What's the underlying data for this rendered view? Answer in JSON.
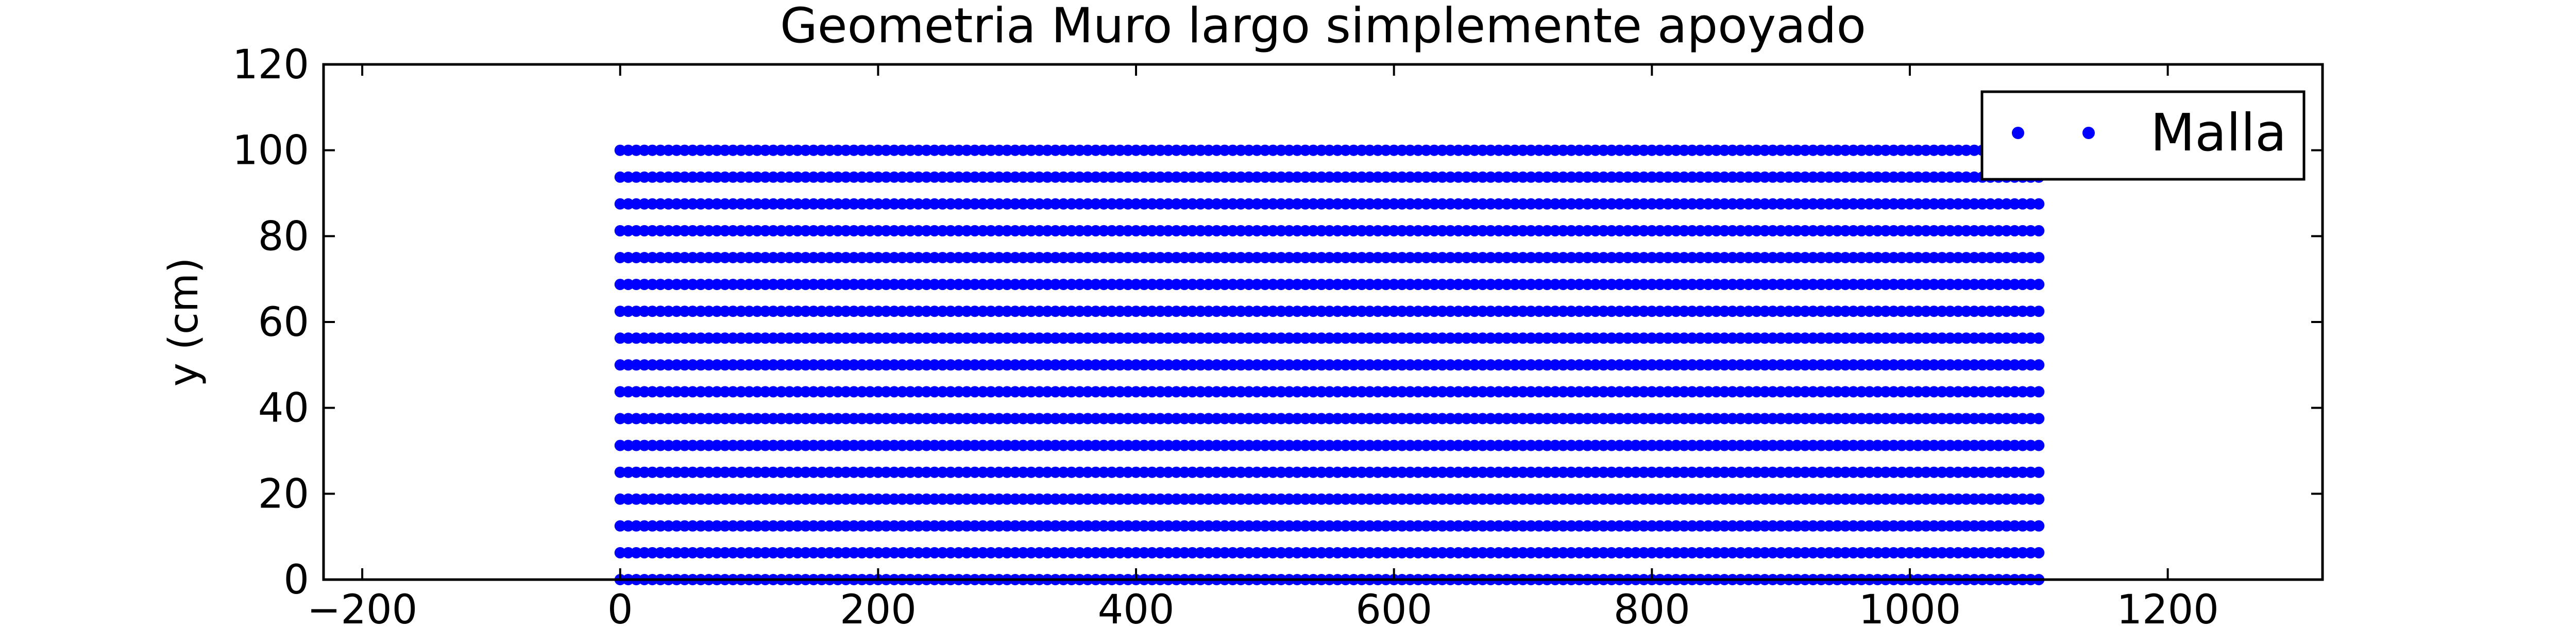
{
  "chart_data": {
    "type": "scatter",
    "title": "Geometria Muro largo simplemente apoyado",
    "xlabel": "",
    "ylabel": "y (cm)",
    "xlim": [
      -230,
      1320
    ],
    "ylim": [
      0,
      120
    ],
    "xticks": [
      -200,
      0,
      200,
      400,
      600,
      800,
      1000,
      1200
    ],
    "yticks": [
      0,
      20,
      40,
      60,
      80,
      100,
      120
    ],
    "xtick_labels": [
      "−200",
      "0",
      "200",
      "400",
      "600",
      "800",
      "1000",
      "1200"
    ],
    "ytick_labels": [
      "0",
      "20",
      "40",
      "60",
      "80",
      "100",
      "120"
    ],
    "grid": false,
    "legend_position": "top-right",
    "series": [
      {
        "name": "Malla",
        "color": "#0000ff",
        "marker": "point",
        "x_range": [
          0,
          1100
        ],
        "x_step": 6.25,
        "y_values": [
          0,
          6.25,
          12.5,
          18.75,
          25,
          31.25,
          37.5,
          43.75,
          50,
          56.25,
          62.5,
          68.75,
          75,
          81.25,
          87.5,
          93.75,
          100
        ]
      }
    ]
  }
}
